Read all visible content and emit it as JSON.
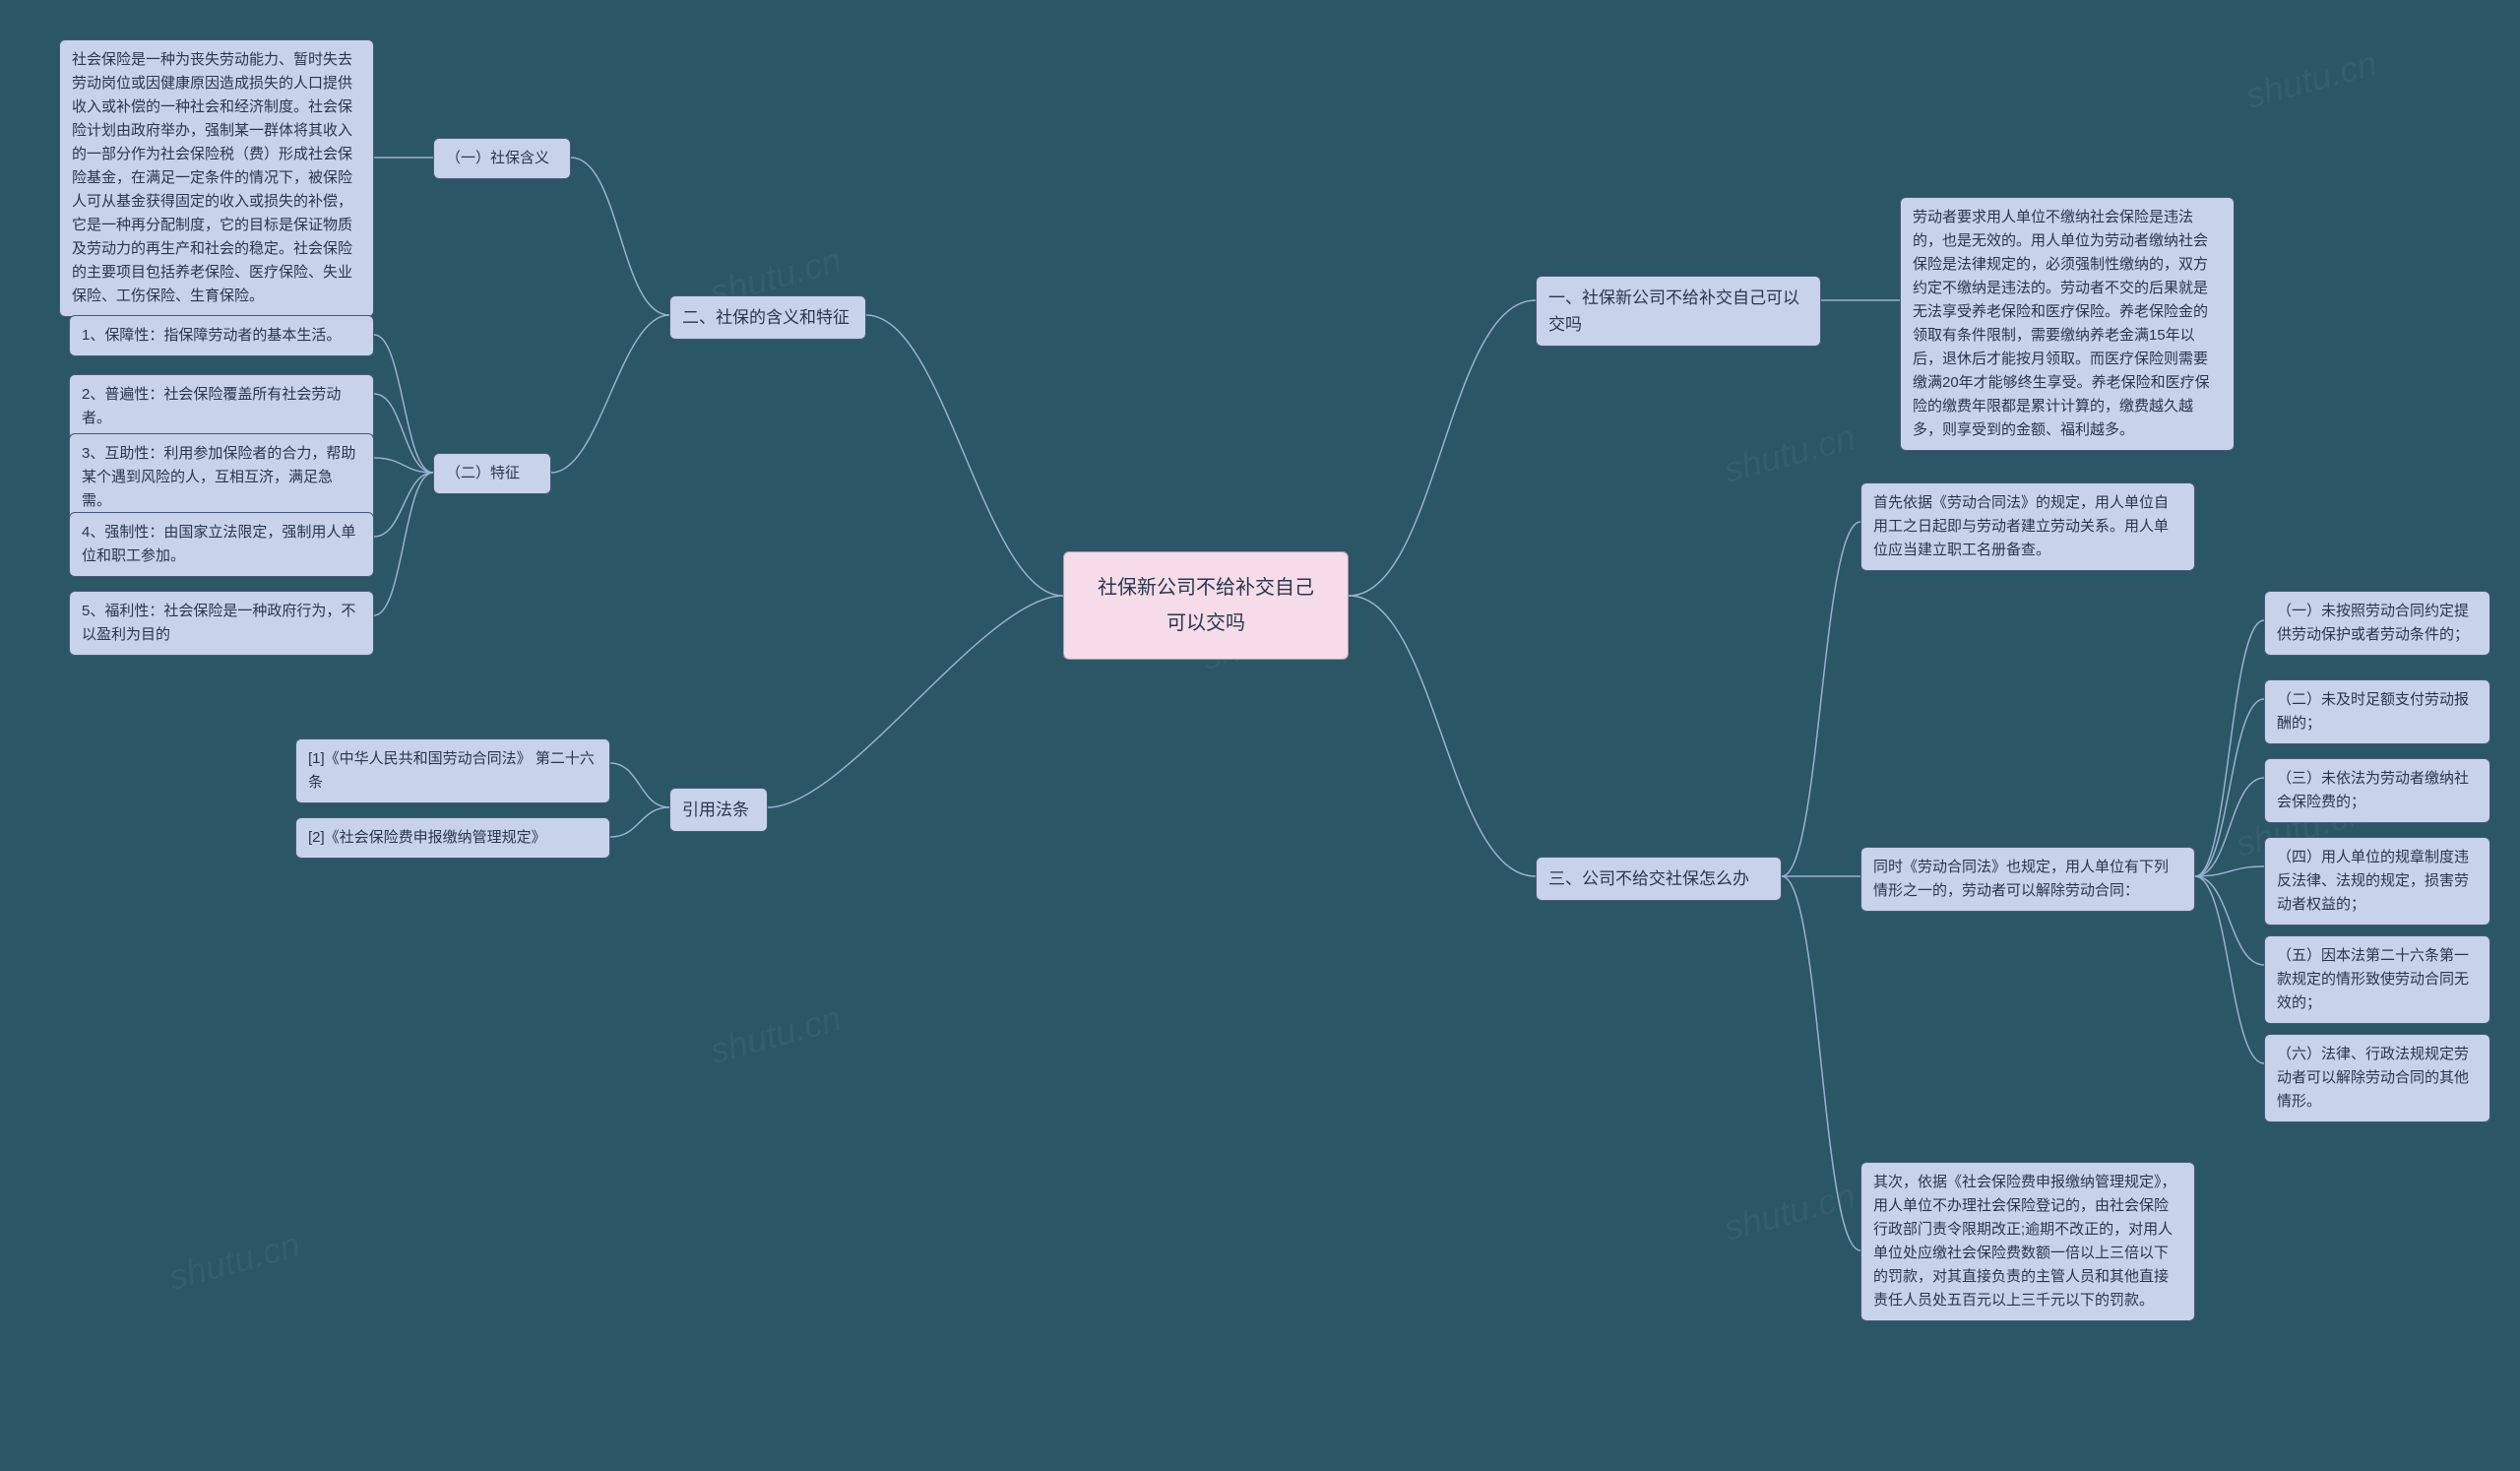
{
  "colors": {
    "background": "#2a5666",
    "node_fill": "#c8d2eb",
    "node_border": "#4a5878",
    "root_fill": "#f5dce8",
    "root_border": "#c090b0",
    "connector": "#9ab0d0",
    "node_text": "#2a3550"
  },
  "watermark_text": "shutu.cn",
  "root": {
    "text": "社保新公司不给补交自己\n可以交吗"
  },
  "left_branches": {
    "b2": {
      "label": "二、社保的含义和特征",
      "children": {
        "c1": {
          "label": "（一）社保含义",
          "leaf": "社会保险是一种为丧失劳动能力、暂时失去劳动岗位或因健康原因造成损失的人口提供收入或补偿的一种社会和经济制度。社会保险计划由政府举办，强制某一群体将其收入的一部分作为社会保险税（费）形成社会保险基金，在满足一定条件的情况下，被保险人可从基金获得固定的收入或损失的补偿，它是一种再分配制度，它的目标是保证物质及劳动力的再生产和社会的稳定。社会保险的主要项目包括养老保险、医疗保险、失业保险、工伤保险、生育保险。"
        },
        "c2": {
          "label": "（二）特征",
          "leaves": [
            "1、保障性：指保障劳动者的基本生活。",
            "2、普遍性：社会保险覆盖所有社会劳动者。",
            "3、互助性：利用参加保险者的合力，帮助某个遇到风险的人，互相互济，满足急需。",
            "4、强制性：由国家立法限定，强制用人单位和职工参加。",
            "5、福利性：社会保险是一种政府行为，不以盈利为目的"
          ]
        }
      }
    },
    "b_ref": {
      "label": "引用法条",
      "leaves": [
        "[1]《中华人民共和国劳动合同法》 第二十六条",
        "[2]《社会保险费申报缴纳管理规定》"
      ]
    }
  },
  "right_branches": {
    "b1": {
      "label": "一、社保新公司不给补交自己可以交吗",
      "leaf": "劳动者要求用人单位不缴纳社会保险是违法的，也是无效的。用人单位为劳动者缴纳社会保险是法律规定的，必须强制性缴纳的，双方约定不缴纳是违法的。劳动者不交的后果就是无法享受养老保险和医疗保险。养老保险金的领取有条件限制，需要缴纳养老金满15年以后，退休后才能按月领取。而医疗保险则需要缴满20年才能够终生享受。养老保险和医疗保险的缴费年限都是累计计算的，缴费越久越多，则享受到的金额、福利越多。"
    },
    "b3": {
      "label": "三、公司不给交社保怎么办",
      "children": {
        "c1": "首先依据《劳动合同法》的规定，用人单位自用工之日起即与劳动者建立劳动关系。用人单位应当建立职工名册备查。",
        "c2": {
          "label": "同时《劳动合同法》也规定，用人单位有下列情形之一的，劳动者可以解除劳动合同：",
          "leaves": [
            "（一）未按照劳动合同约定提供劳动保护或者劳动条件的；",
            "（二）未及时足额支付劳动报酬的；",
            "（三）未依法为劳动者缴纳社会保险费的；",
            "（四）用人单位的规章制度违反法律、法规的规定，损害劳动者权益的；",
            "（五）因本法第二十六条第一款规定的情形致使劳动合同无效的；",
            "（六）法律、行政法规规定劳动者可以解除劳动合同的其他情形。"
          ]
        },
        "c3": "其次，依据《社会保险费申报缴纳管理规定》，用人单位不办理社会保险登记的，由社会保险行政部门责令限期改正;逾期不改正的，对用人单位处应缴社会保险费数额一倍以上三倍以下的罚款，对其直接负责的主管人员和其他直接责任人员处五百元以上三千元以下的罚款。"
      }
    }
  }
}
